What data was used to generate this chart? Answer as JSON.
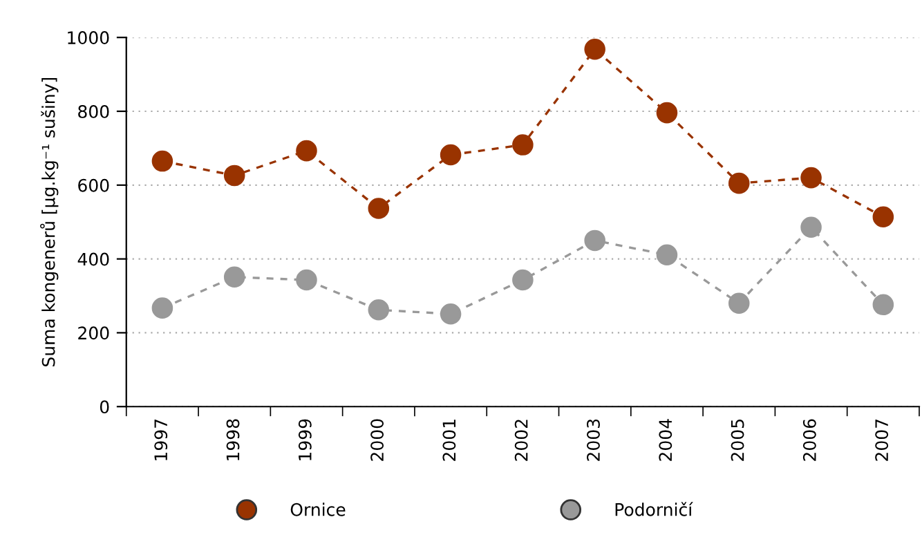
{
  "chart_data": {
    "type": "line",
    "ylabel": "Suma kongenerů [µg.kg⁻¹ sušiny]",
    "categories": [
      "1997",
      "1998",
      "1999",
      "2000",
      "2001",
      "2002",
      "2003",
      "2004",
      "2005",
      "2006",
      "2007"
    ],
    "series": [
      {
        "name": "Ornice",
        "color": "#993300",
        "values": [
          665,
          626,
          693,
          537,
          682,
          709,
          968,
          796,
          605,
          620,
          514
        ]
      },
      {
        "name": "Podorničí",
        "color": "#999999",
        "values": [
          267,
          351,
          343,
          262,
          251,
          343,
          450,
          411,
          280,
          486,
          276
        ]
      }
    ],
    "ylim": [
      0,
      1000
    ],
    "yticks": [
      0,
      200,
      400,
      600,
      800,
      1000
    ],
    "grid": "y",
    "legend": "bottom",
    "marker": "circle",
    "line_style": "dashed"
  }
}
